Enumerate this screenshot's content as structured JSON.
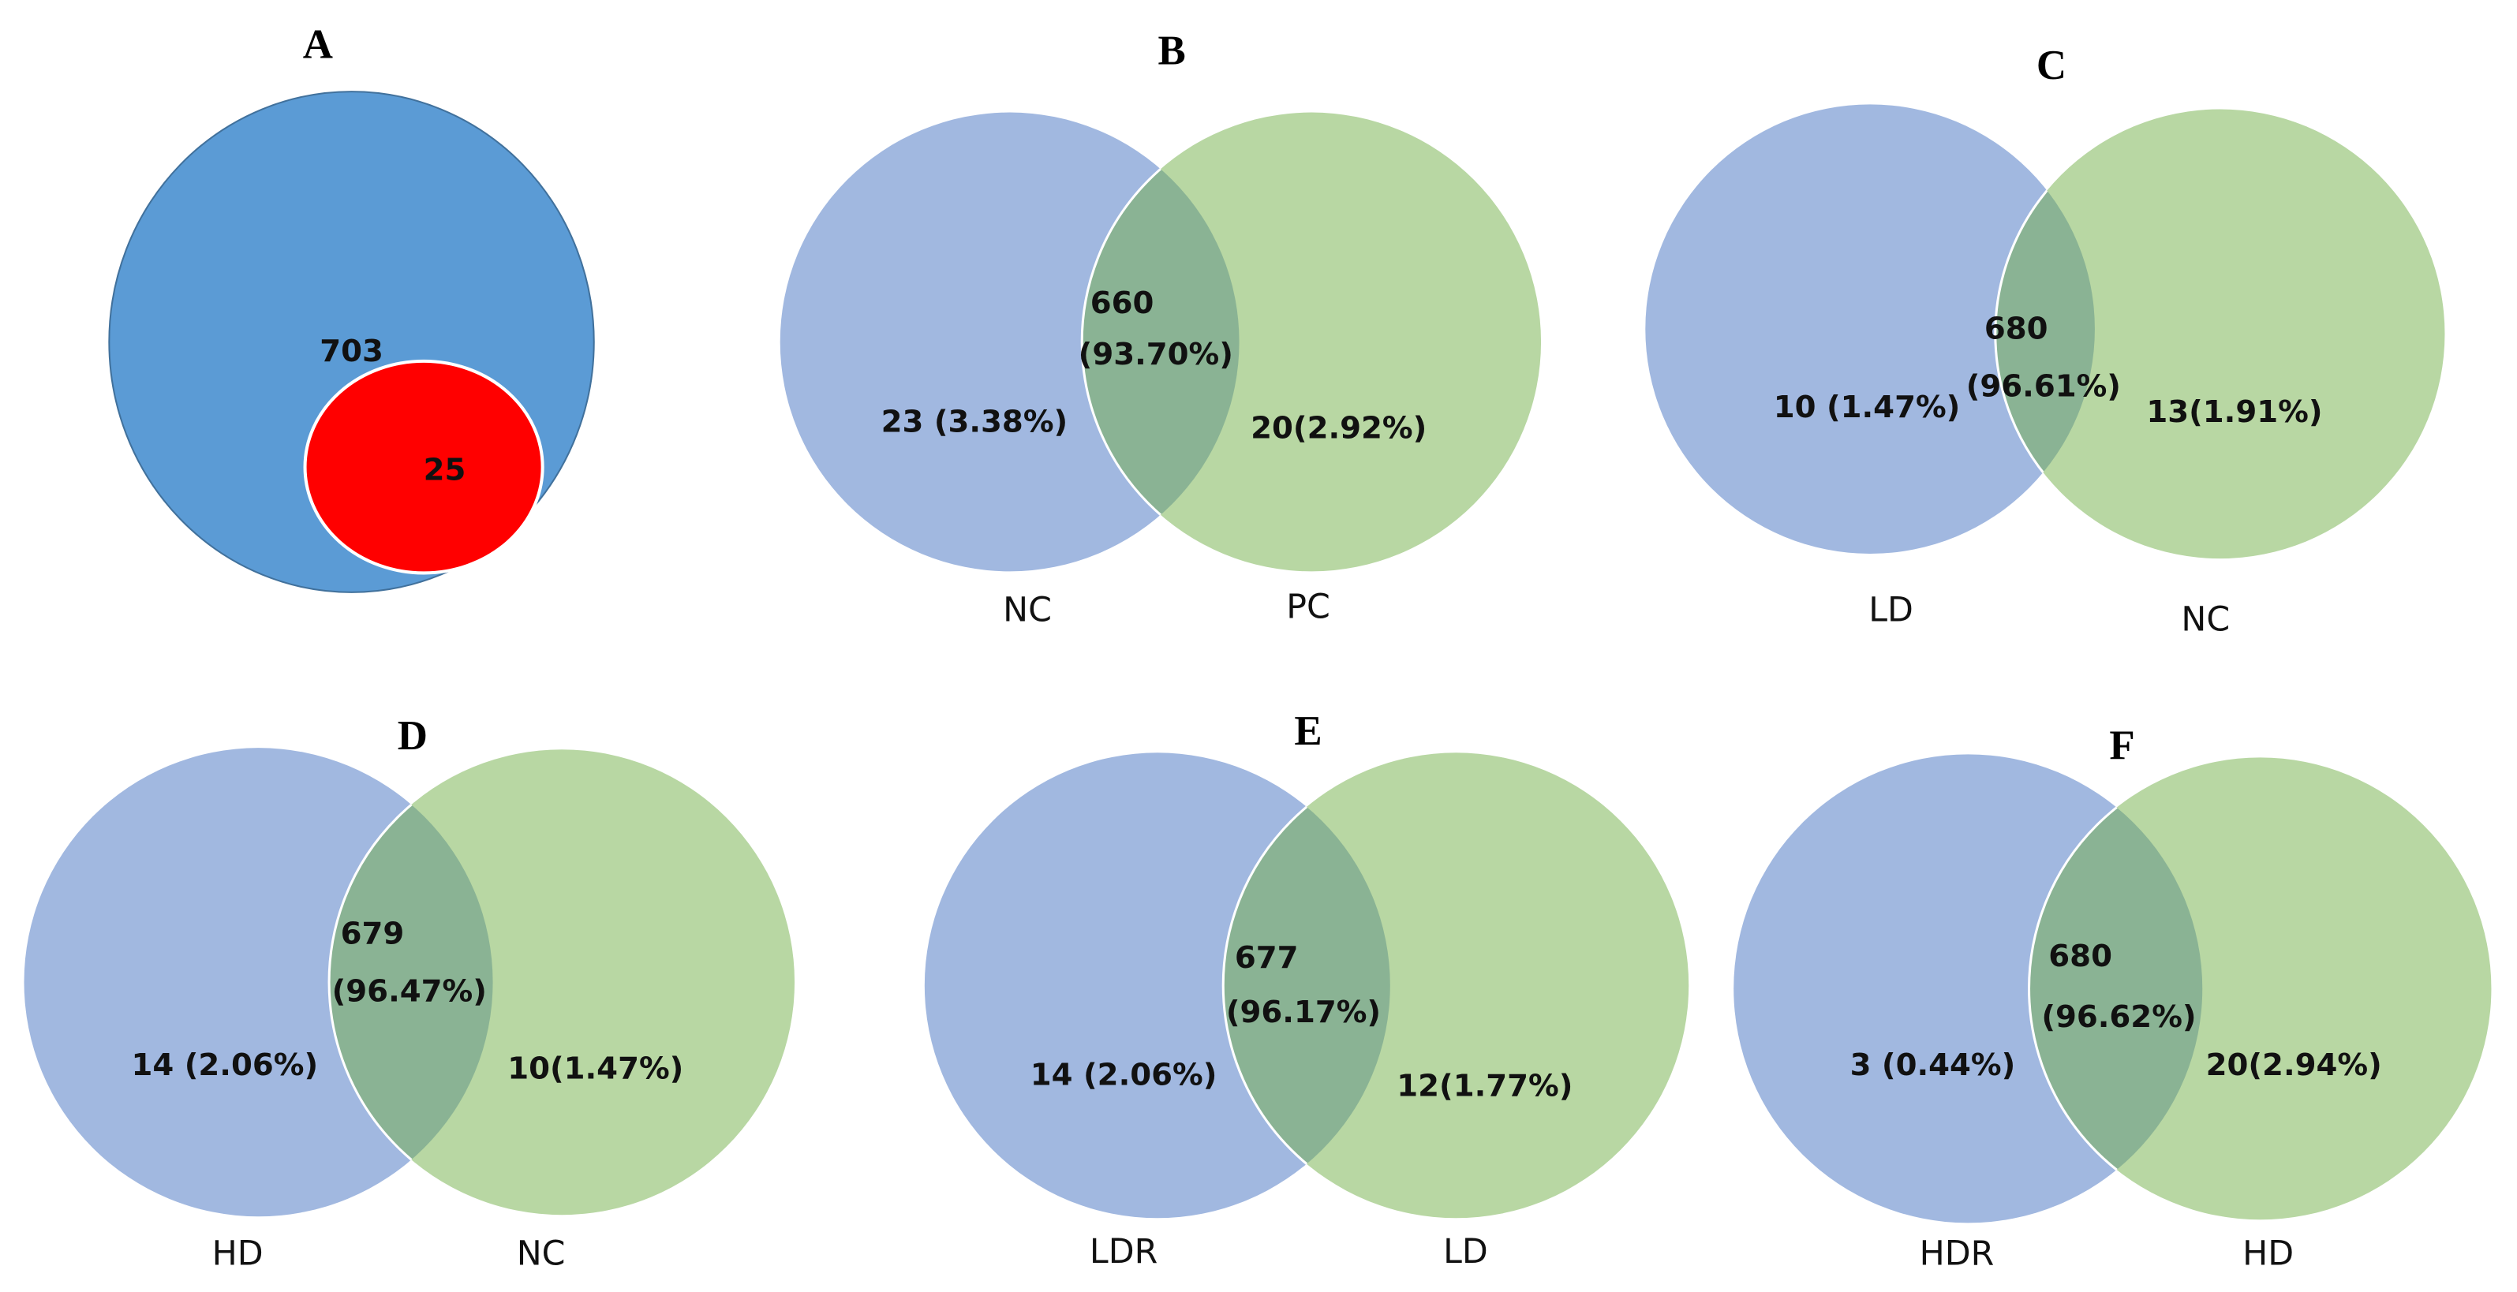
{
  "colors": {
    "left": "#a1b8e0",
    "right": "#b8d7a3",
    "overlap": "#8ab394",
    "panel_a_outer": "#5b9bd5",
    "panel_a_inner": "#ff0000"
  },
  "panel_a": {
    "title": "A",
    "outer_value": "703",
    "inner_value": "25"
  },
  "venns": [
    {
      "title": "B",
      "left_label": "NC",
      "right_label": "PC",
      "left_only": "23 (3.38%)",
      "right_only": "20(2.92%)",
      "shared_count": "660",
      "shared_pct": "(93.70%)"
    },
    {
      "title": "C",
      "left_label": "LD",
      "right_label": "NC",
      "left_only": "10 (1.47%)",
      "right_only": "13(1.91%)",
      "shared_count": "680",
      "shared_pct": "(96.61%)"
    },
    {
      "title": "D",
      "left_label": "HD",
      "right_label": "NC",
      "left_only": "14 (2.06%)",
      "right_only": "10(1.47%)",
      "shared_count": "679",
      "shared_pct": "(96.47%)"
    },
    {
      "title": "E",
      "left_label": "LDR",
      "right_label": "LD",
      "left_only": "14 (2.06%)",
      "right_only": "12(1.77%)",
      "shared_count": "677",
      "shared_pct": "(96.17%)"
    },
    {
      "title": "F",
      "left_label": "HDR",
      "right_label": "HD",
      "left_only": "3 (0.44%)",
      "right_only": "20(2.94%)",
      "shared_count": "680",
      "shared_pct": "(96.62%)"
    }
  ]
}
